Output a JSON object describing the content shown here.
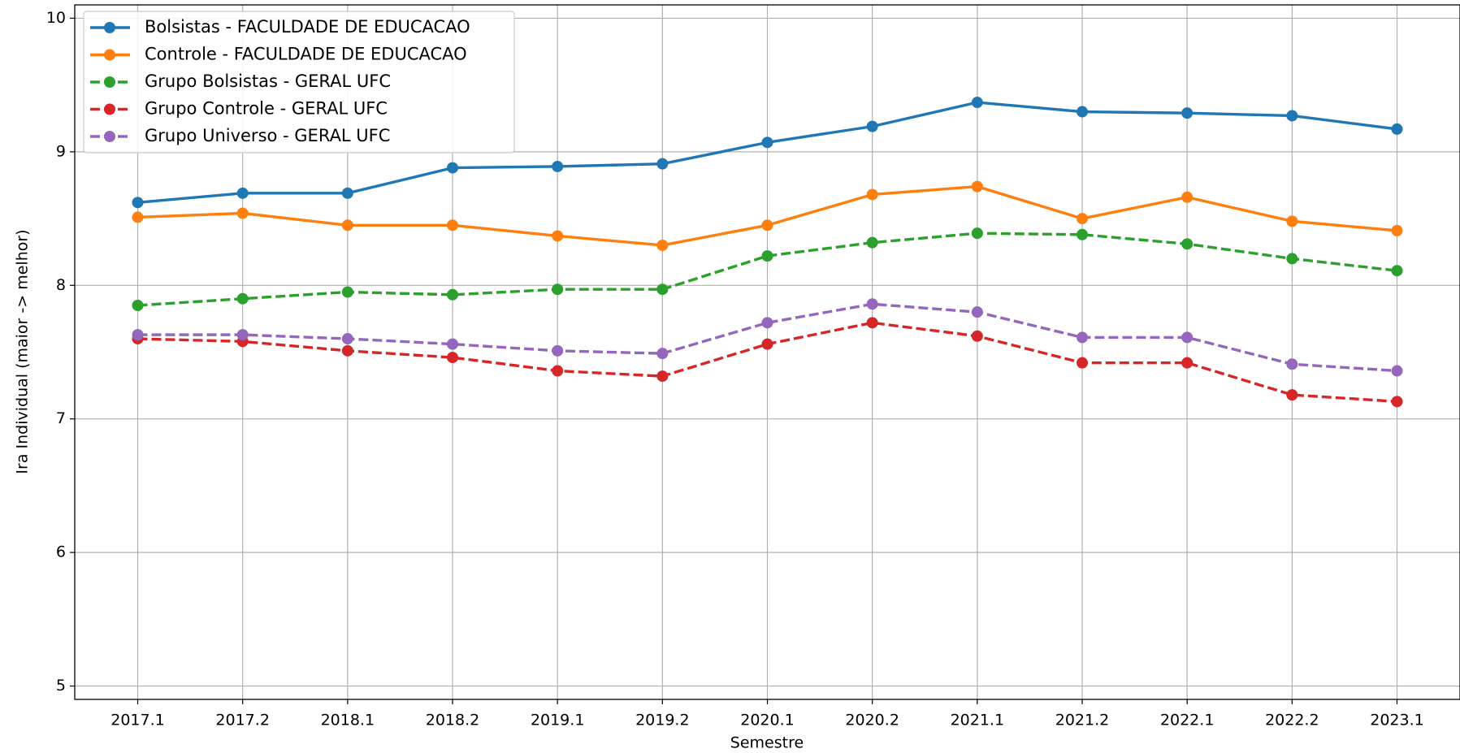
{
  "chart_data": {
    "type": "line",
    "x_label": "Semestre",
    "y_label": "Ira Individual (maior -> melhor)",
    "categories": [
      "2017.1",
      "2017.2",
      "2018.1",
      "2018.2",
      "2019.1",
      "2019.2",
      "2020.1",
      "2020.2",
      "2021.1",
      "2021.2",
      "2022.1",
      "2022.2",
      "2023.1"
    ],
    "ylim": [
      4.9,
      10.1
    ],
    "yticks": [
      5,
      6,
      7,
      8,
      9,
      10
    ],
    "grid": true,
    "legend": "upper left",
    "series": [
      {
        "name": "Bolsistas - FACULDADE DE EDUCACAO",
        "color": "#1f77b4",
        "dashed": false,
        "values": [
          8.62,
          8.69,
          8.69,
          8.88,
          8.89,
          8.91,
          9.07,
          9.19,
          9.37,
          9.3,
          9.29,
          9.27,
          9.17
        ]
      },
      {
        "name": "Controle - FACULDADE DE EDUCACAO",
        "color": "#ff7f0e",
        "dashed": false,
        "values": [
          8.51,
          8.54,
          8.45,
          8.45,
          8.37,
          8.3,
          8.45,
          8.68,
          8.74,
          8.5,
          8.66,
          8.48,
          8.41
        ]
      },
      {
        "name": "Grupo Bolsistas - GERAL UFC",
        "color": "#2ca02c",
        "dashed": true,
        "values": [
          7.85,
          7.9,
          7.95,
          7.93,
          7.97,
          7.97,
          8.22,
          8.32,
          8.39,
          8.38,
          8.31,
          8.2,
          8.11
        ]
      },
      {
        "name": "Grupo Controle - GERAL UFC",
        "color": "#d62728",
        "dashed": true,
        "values": [
          7.6,
          7.58,
          7.51,
          7.46,
          7.36,
          7.32,
          7.56,
          7.72,
          7.62,
          7.42,
          7.42,
          7.18,
          7.13
        ]
      },
      {
        "name": "Grupo Universo - GERAL UFC",
        "color": "#9467bd",
        "dashed": true,
        "values": [
          7.63,
          7.63,
          7.6,
          7.56,
          7.51,
          7.49,
          7.72,
          7.86,
          7.8,
          7.61,
          7.61,
          7.41,
          7.36
        ]
      }
    ]
  }
}
